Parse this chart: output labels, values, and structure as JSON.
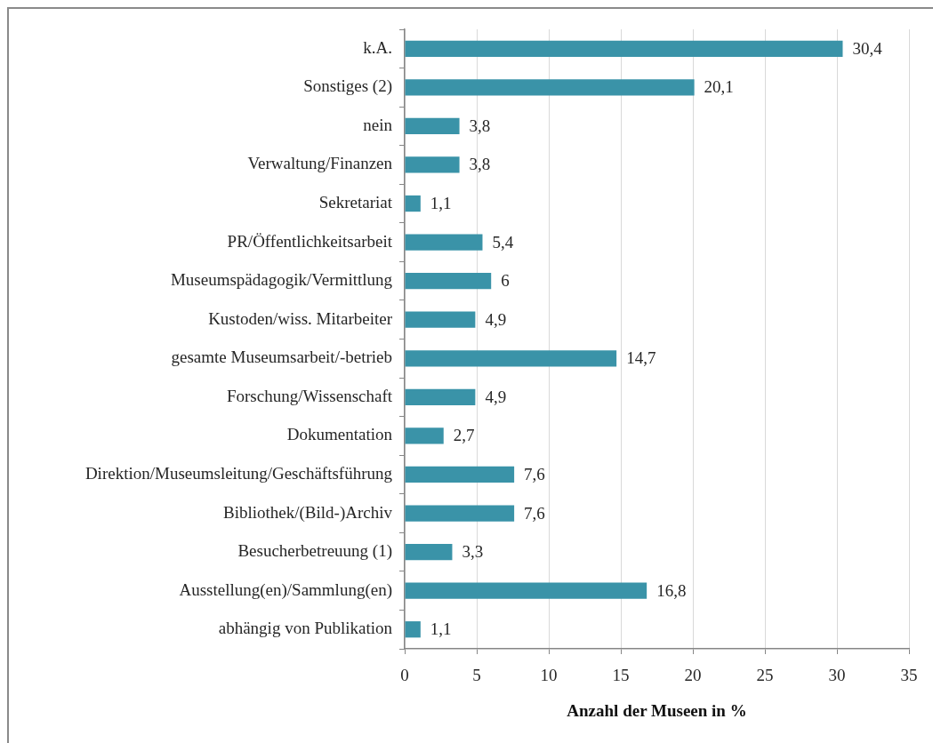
{
  "chart_data": {
    "type": "bar",
    "orientation": "horizontal",
    "xlabel": "Anzahl der Museen in %",
    "categories": [
      "k.A.",
      "Sonstiges (2)",
      "nein",
      "Verwaltung/Finanzen",
      "Sekretariat",
      "PR/Öffentlichkeitsarbeit",
      "Museumspädagogik/Vermittlung",
      "Kustoden/wiss. Mitarbeiter",
      "gesamte Museumsarbeit/-betrieb",
      "Forschung/Wissenschaft",
      "Dokumentation",
      "Direktion/Museumsleitung/Geschäftsführung",
      "Bibliothek/(Bild-)Archiv",
      "Besucherbetreuung (1)",
      "Ausstellung(en)/Sammlung(en)",
      "abhängig von Publikation"
    ],
    "values": [
      30.4,
      20.1,
      3.8,
      3.8,
      1.1,
      5.4,
      6,
      4.9,
      14.7,
      4.9,
      2.7,
      7.6,
      7.6,
      3.3,
      16.8,
      1.1
    ],
    "value_labels": [
      "30,4",
      "20,1",
      "3,8",
      "3,8",
      "1,1",
      "5,4",
      "6",
      "4,9",
      "14,7",
      "4,9",
      "2,7",
      "7,6",
      "7,6",
      "3,3",
      "16,8",
      "1,1"
    ],
    "color": "#3a93a8",
    "xlim": [
      0,
      35
    ],
    "xticks": [
      0,
      5,
      10,
      15,
      20,
      25,
      30,
      35
    ],
    "grid": "x"
  }
}
